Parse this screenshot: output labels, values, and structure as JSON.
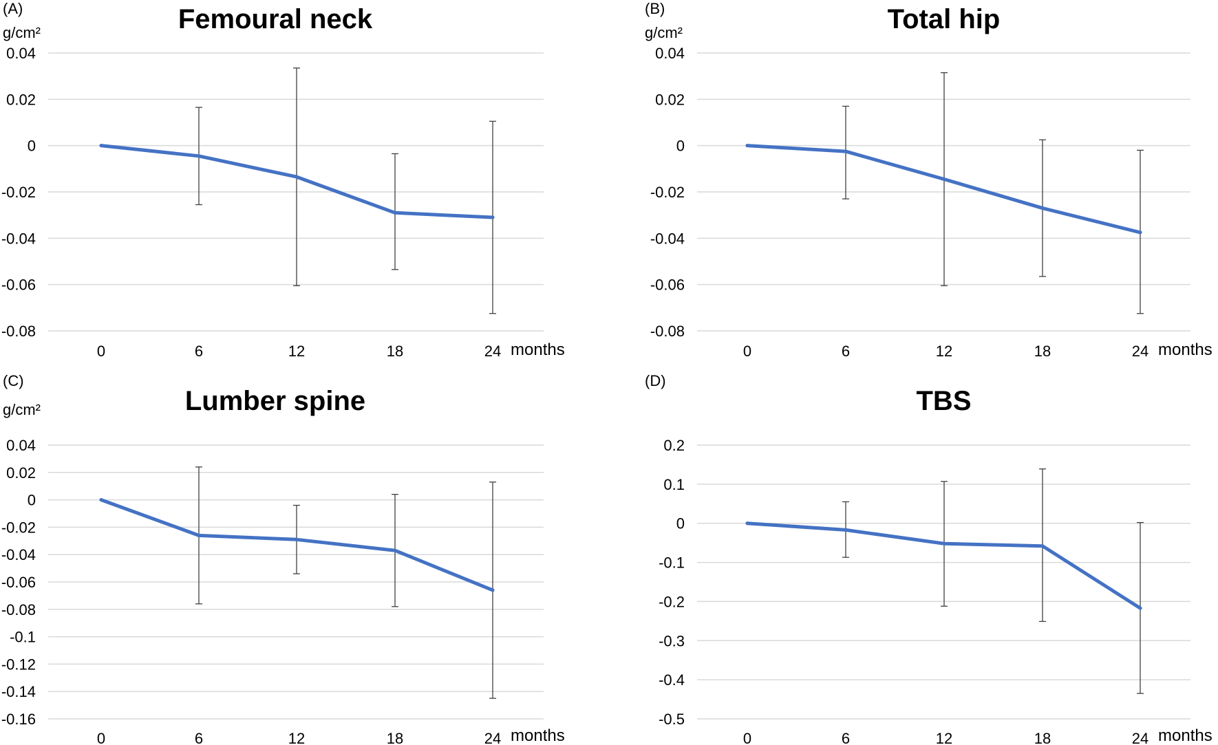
{
  "chart_data": [
    {
      "type": "line",
      "panel_label": "(A)",
      "title": "Femoural neck",
      "ylabel": "g/cm²",
      "xlabel": "months",
      "categories": [
        "0",
        "6",
        "12",
        "18",
        "24"
      ],
      "yticks": [
        "0.04",
        "0.02",
        "0",
        "-0.02",
        "-0.04",
        "-0.06",
        "-0.08"
      ],
      "ylim": [
        -0.08,
        0.04
      ],
      "series": [
        {
          "name": "Femoural neck",
          "color": "#4472C4",
          "values": [
            0,
            -0.0045,
            -0.0135,
            -0.029,
            -0.031
          ],
          "error_low": [
            0,
            -0.0255,
            -0.0605,
            -0.0535,
            -0.0725
          ],
          "error_high": [
            0,
            0.0165,
            0.0335,
            -0.0035,
            0.0105
          ]
        }
      ]
    },
    {
      "type": "line",
      "panel_label": "(B)",
      "title": "Total hip",
      "ylabel": "g/cm²",
      "xlabel": "months",
      "categories": [
        "0",
        "6",
        "12",
        "18",
        "24"
      ],
      "yticks": [
        "0.04",
        "0.02",
        "0",
        "-0.02",
        "-0.04",
        "-0.06",
        "-0.08"
      ],
      "ylim": [
        -0.08,
        0.04
      ],
      "series": [
        {
          "name": "Total hip",
          "color": "#4472C4",
          "values": [
            0,
            -0.0025,
            -0.0145,
            -0.027,
            -0.0375
          ],
          "error_low": [
            0,
            -0.023,
            -0.0605,
            -0.0565,
            -0.0725
          ],
          "error_high": [
            0,
            0.017,
            0.0315,
            0.0025,
            -0.002
          ]
        }
      ]
    },
    {
      "type": "line",
      "panel_label": "(C)",
      "title": "Lumber spine",
      "ylabel": "g/cm²",
      "xlabel": "months",
      "categories": [
        "0",
        "6",
        "12",
        "18",
        "24"
      ],
      "yticks": [
        "0.04",
        "0.02",
        "0",
        "-0.02",
        "-0.04",
        "-0.06",
        "-0.08",
        "-0.1",
        "-0.12",
        "-0.14",
        "-0.16"
      ],
      "ylim": [
        -0.16,
        0.04
      ],
      "series": [
        {
          "name": "Lumber spine",
          "color": "#4472C4",
          "values": [
            0,
            -0.026,
            -0.029,
            -0.037,
            -0.066
          ],
          "error_low": [
            0,
            -0.076,
            -0.054,
            -0.078,
            -0.145
          ],
          "error_high": [
            0,
            0.024,
            -0.004,
            0.004,
            0.013
          ]
        }
      ]
    },
    {
      "type": "line",
      "panel_label": "(D)",
      "title": "TBS",
      "ylabel": "",
      "xlabel": "months",
      "categories": [
        "0",
        "6",
        "12",
        "18",
        "24"
      ],
      "yticks": [
        "0.2",
        "0.1",
        "0",
        "-0.1",
        "-0.2",
        "-0.3",
        "-0.4",
        "-0.5"
      ],
      "ylim": [
        -0.5,
        0.2
      ],
      "series": [
        {
          "name": "TBS",
          "color": "#4472C4",
          "values": [
            0,
            -0.017,
            -0.052,
            -0.058,
            -0.217
          ],
          "error_low": [
            0,
            -0.087,
            -0.212,
            -0.251,
            -0.435
          ],
          "error_high": [
            0,
            0.055,
            0.107,
            0.139,
            0.002
          ]
        }
      ]
    }
  ]
}
